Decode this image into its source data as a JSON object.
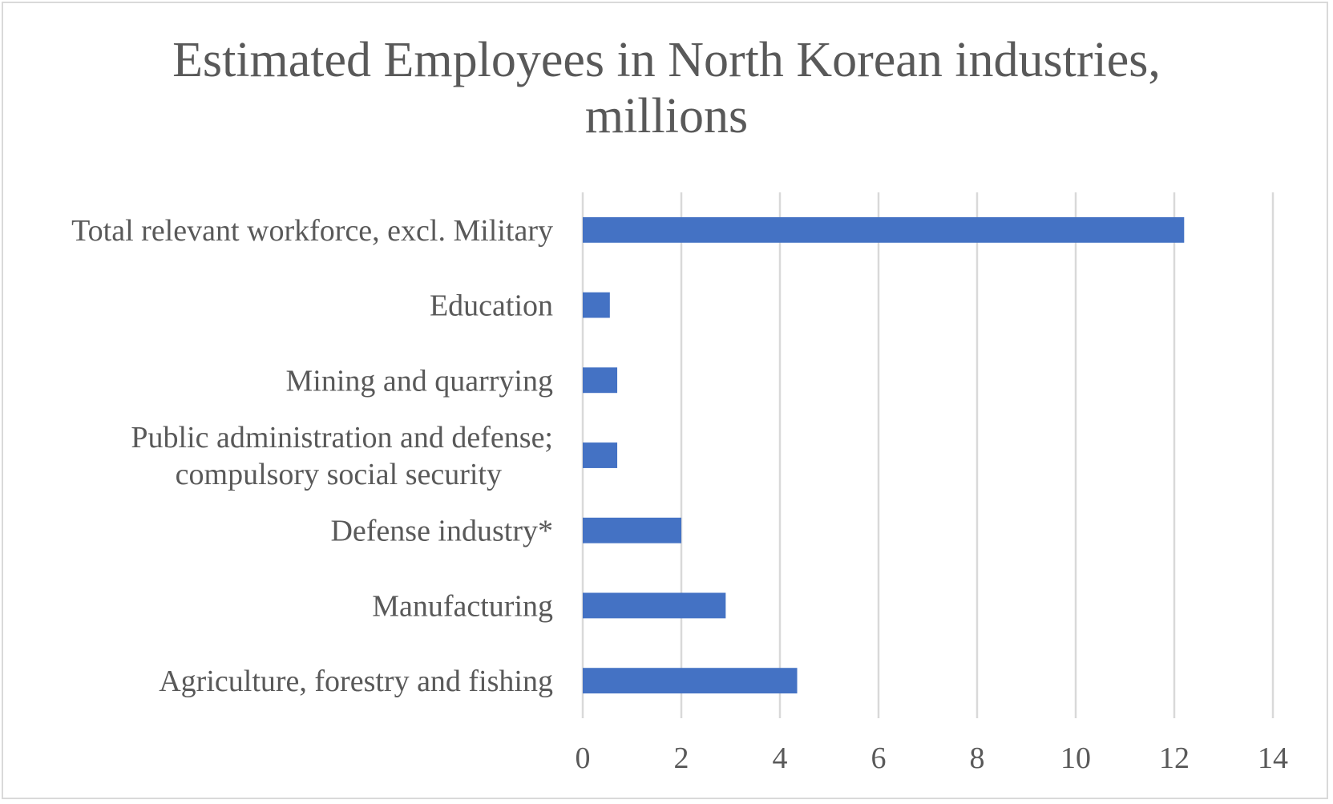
{
  "chart_data": {
    "type": "bar",
    "orientation": "horizontal",
    "title": [
      "Estimated Employees in North Korean industries,",
      "millions"
    ],
    "categories": [
      [
        "Total relevant workforce, excl. Military"
      ],
      [
        "Education"
      ],
      [
        "Mining and quarrying"
      ],
      [
        "Public administration and defense;",
        "compulsory social security"
      ],
      [
        "Defense industry*"
      ],
      [
        "Manufacturing"
      ],
      [
        "Agriculture, forestry and fishing"
      ]
    ],
    "values": [
      12.2,
      0.55,
      0.7,
      0.7,
      2.0,
      2.9,
      4.35
    ],
    "xlim": [
      0,
      14
    ],
    "xticks": [
      "0",
      "2",
      "4",
      "6",
      "8",
      "10",
      "12",
      "14"
    ],
    "grid": true,
    "bar_color": "#4472c4",
    "grid_color": "#d9d9d9",
    "text_color": "#595959"
  }
}
